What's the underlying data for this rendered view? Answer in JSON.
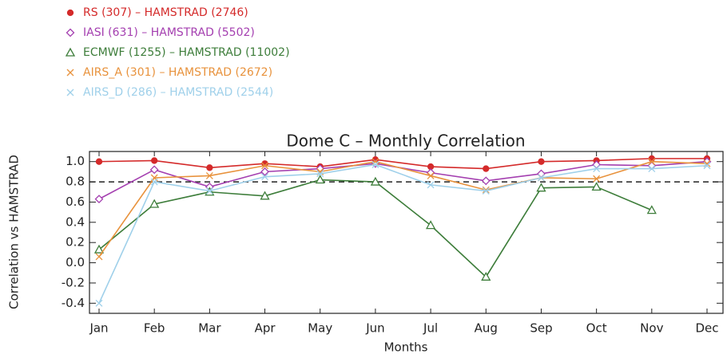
{
  "chart_data": {
    "type": "line",
    "title": "Dome C – Monthly Correlation",
    "x_label": "Months",
    "y_label": "Correlation vs HAMSTRAD",
    "categories": [
      "Jan",
      "Feb",
      "Mar",
      "Apr",
      "May",
      "Jun",
      "Jul",
      "Aug",
      "Sep",
      "Oct",
      "Nov",
      "Dec"
    ],
    "ylim": [
      -0.5,
      1.1
    ],
    "yticks": [
      {
        "value": -0.4,
        "label": "-0.4"
      },
      -0.2,
      {
        "value": 0,
        "label": "0.0"
      },
      0.2,
      0.4,
      0.6,
      0.8,
      {
        "value": 1,
        "label": "1.0"
      }
    ],
    "reference_line": 0.8,
    "legend": "top-left",
    "series": [
      {
        "name": "RS (307) – HAMSTRAD (2746)",
        "color": "#d42a2a",
        "marker": "filled-circle",
        "values": [
          1.0,
          1.01,
          0.94,
          0.98,
          0.95,
          1.02,
          0.95,
          0.93,
          1.0,
          1.01,
          1.03,
          1.03
        ]
      },
      {
        "name": "IASI (631) – HAMSTRAD (5502)",
        "color": "#a43fb0",
        "marker": "diamond",
        "values": [
          0.63,
          0.92,
          0.75,
          0.9,
          0.93,
          0.98,
          0.89,
          0.81,
          0.88,
          0.97,
          0.96,
          1.0
        ]
      },
      {
        "name": "ECMWF (1255) – HAMSTRAD (11002)",
        "color": "#3d7d3a",
        "marker": "triangle",
        "values": [
          0.13,
          0.58,
          0.7,
          0.66,
          0.82,
          0.8,
          0.37,
          -0.14,
          0.74,
          0.75,
          0.52,
          null
        ]
      },
      {
        "name": "AIRS_A (301) – HAMSTRAD (2672)",
        "color": "#e8923c",
        "marker": "x",
        "values": [
          0.06,
          0.84,
          0.86,
          0.96,
          0.9,
          1.0,
          0.86,
          0.72,
          0.84,
          0.83,
          1.0,
          0.98
        ]
      },
      {
        "name": "AIRS_D (286) – HAMSTRAD (2544)",
        "color": "#9fd0ea",
        "marker": "x",
        "values": [
          -0.4,
          0.8,
          0.71,
          0.85,
          0.88,
          0.97,
          0.77,
          0.71,
          0.84,
          0.93,
          0.93,
          0.96
        ]
      }
    ]
  }
}
